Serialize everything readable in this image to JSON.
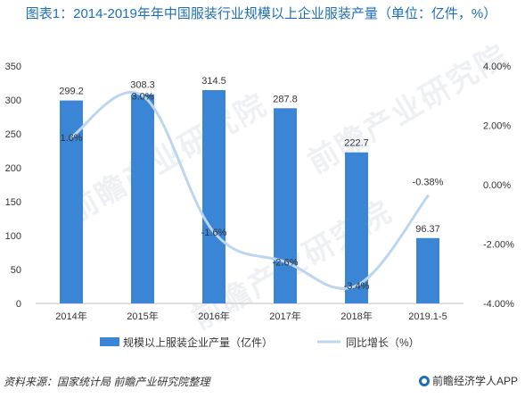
{
  "title": "图表1：2014-2019年年中国服装行业规模以上企业服装产量（单位：亿件，%）",
  "footer": {
    "source": "资料来源：国家统计局 前瞻产业研究院整理",
    "brand": "前瞻经济学人APP"
  },
  "watermark": "前瞻产业研究院",
  "chart_data": {
    "type": "bar",
    "categories": [
      "2014年",
      "2015年",
      "2016年",
      "2017年",
      "2018年",
      "2019.1-5"
    ],
    "series": [
      {
        "name": "规模以上服装企业产量（亿件）",
        "type": "bar",
        "axis": "left",
        "values": [
          299.2,
          308.3,
          314.5,
          287.8,
          222.7,
          96.37
        ],
        "labels": [
          "299.2",
          "308.3",
          "314.5",
          "287.8",
          "222.7",
          "96.37"
        ],
        "color": "#3a85d6"
      },
      {
        "name": "同比增长（%）",
        "type": "line",
        "axis": "right",
        "values": [
          1.6,
          3.0,
          -1.6,
          -2.6,
          -3.4,
          -0.38
        ],
        "labels": [
          "1.6%",
          "3.0%",
          "-1.6%",
          "-2.6%",
          "-3.4%",
          "-0.38%"
        ],
        "color": "#bcd6ee"
      }
    ],
    "y_left": {
      "ylim": [
        0,
        350
      ],
      "ticks": [
        "0",
        "50",
        "100",
        "150",
        "200",
        "250",
        "300",
        "350"
      ]
    },
    "y_right": {
      "ylim": [
        -4,
        4
      ],
      "ticks": [
        "-4.00%",
        "-2.00%",
        "0.00%",
        "2.00%",
        "4.00%"
      ]
    },
    "grid": false,
    "legend": "bottom"
  }
}
